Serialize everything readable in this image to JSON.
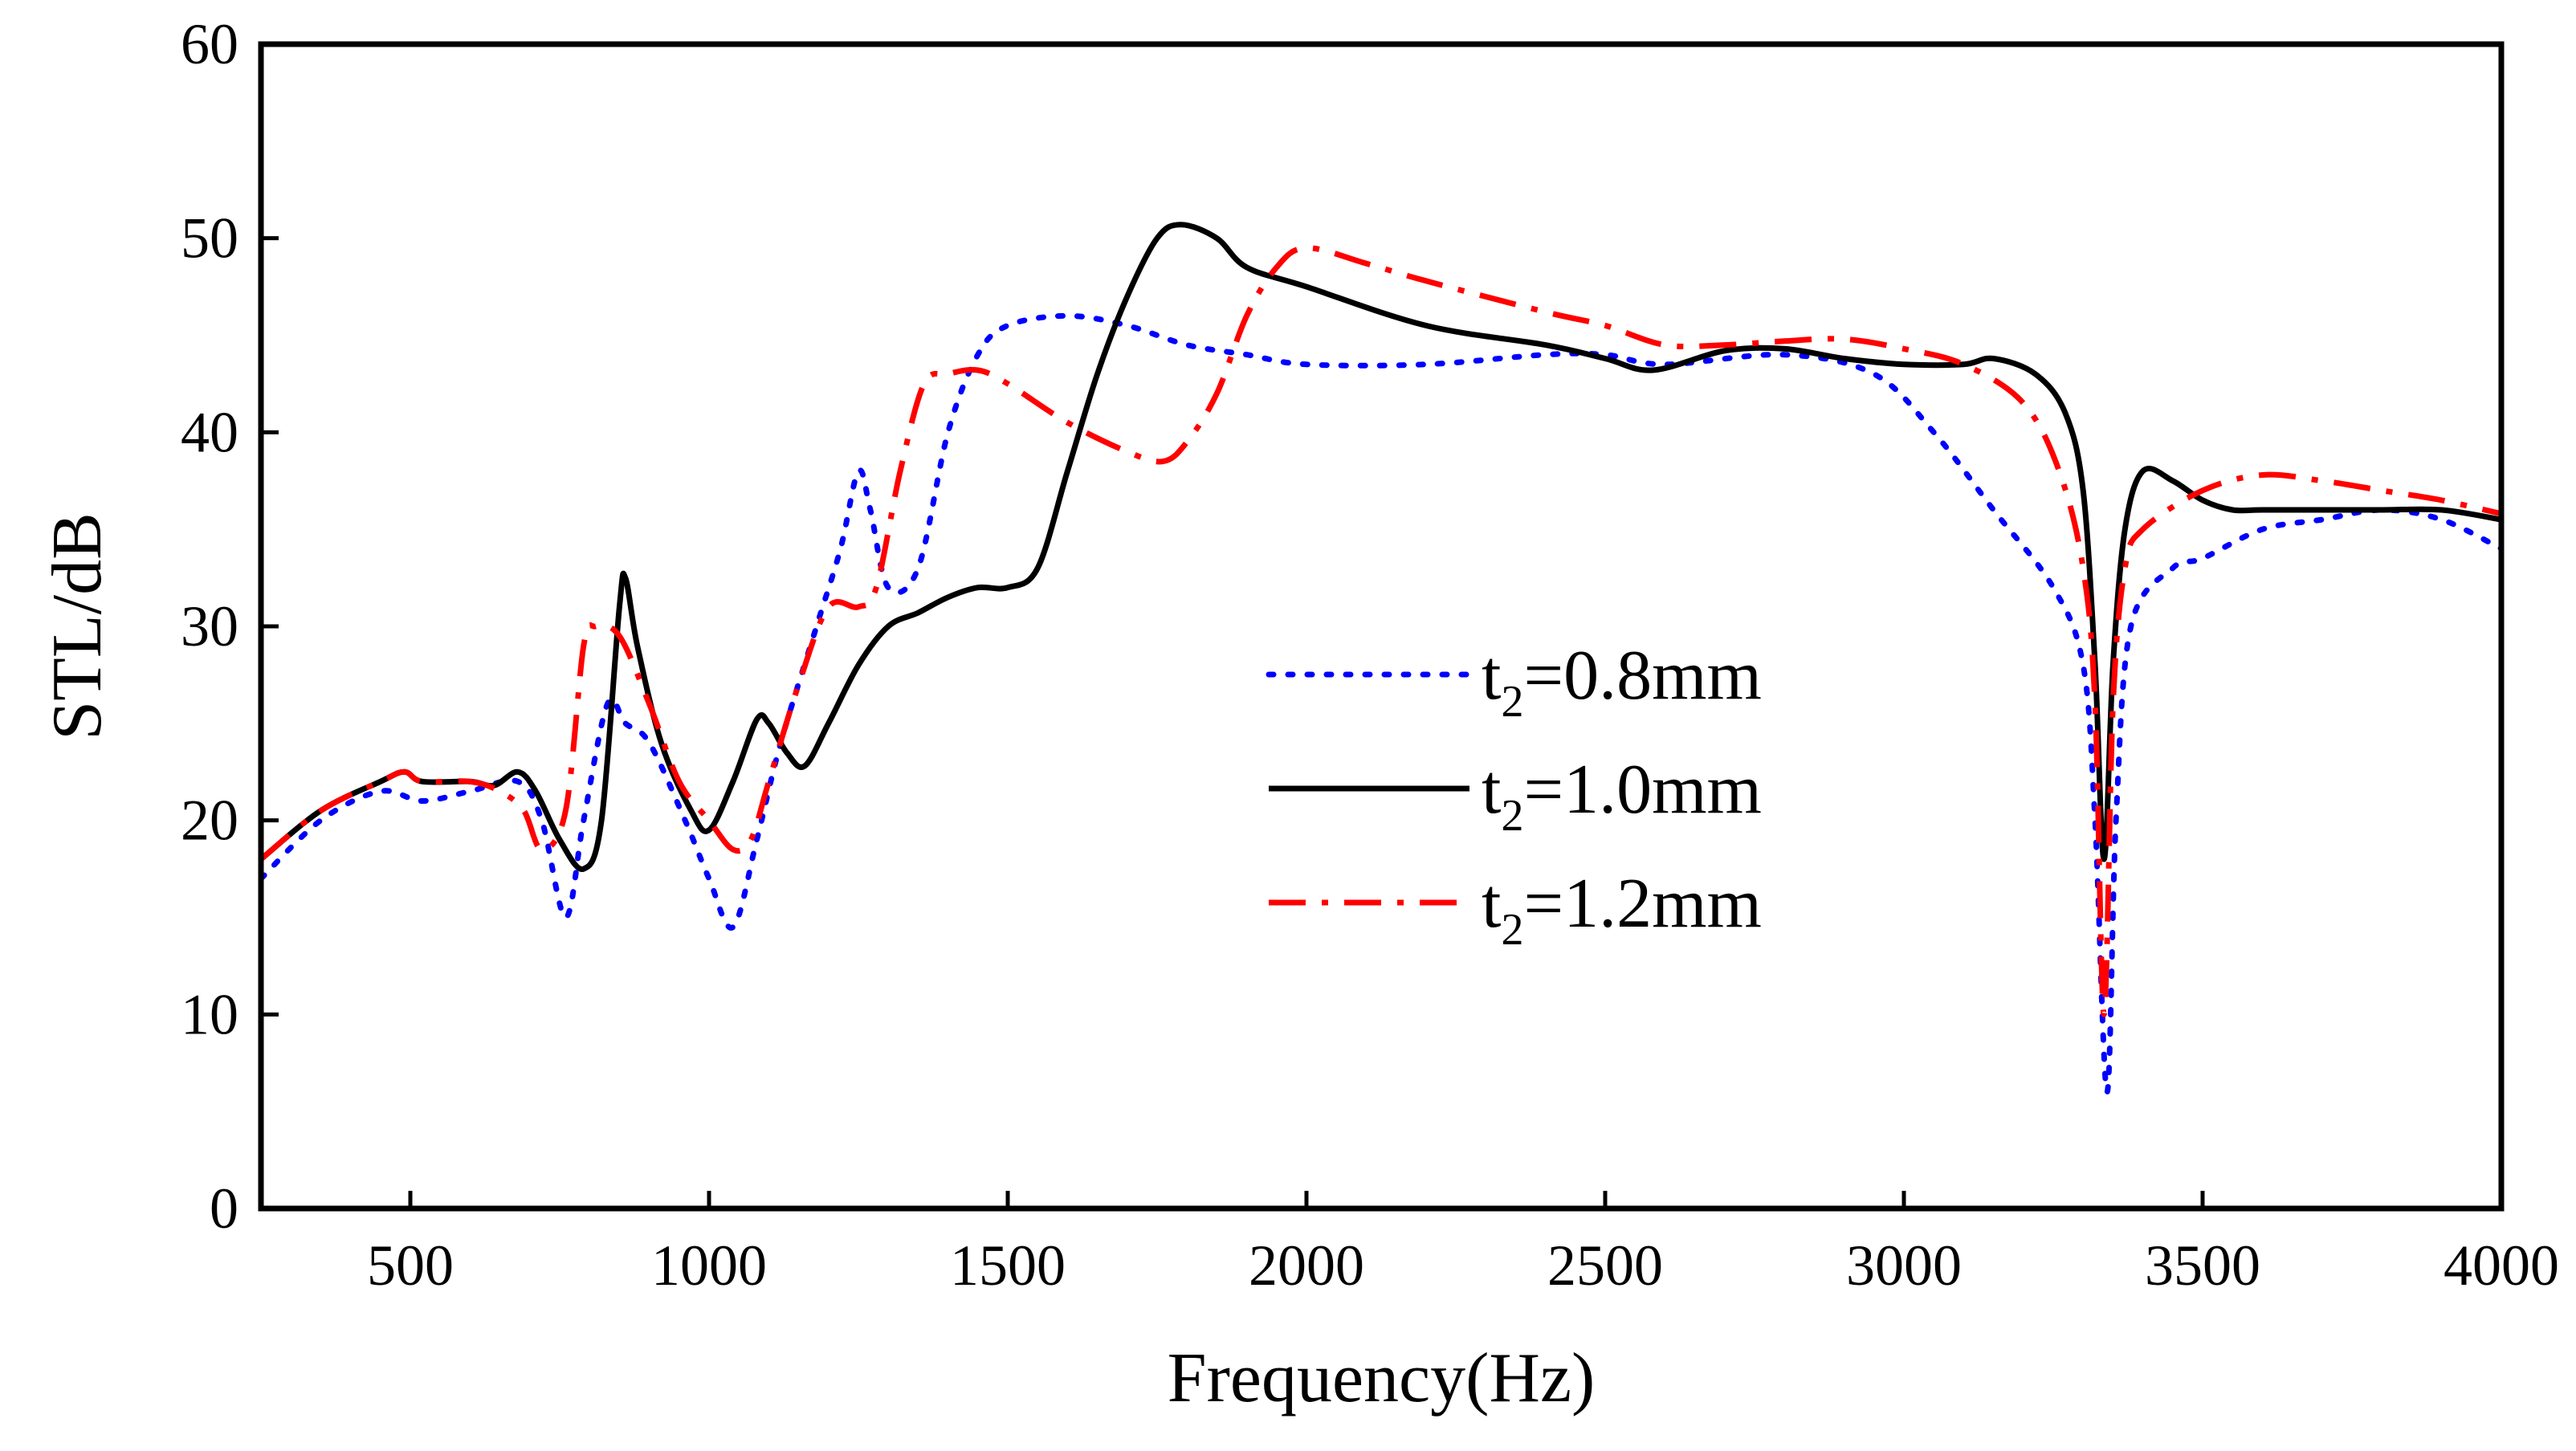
{
  "chart_data": {
    "type": "line",
    "title": "",
    "xlabel": "Frequency(Hz)",
    "ylabel": "STL/dB",
    "xlim": [
      250,
      4000
    ],
    "ylim": [
      0,
      60
    ],
    "xticks": [
      500,
      1000,
      1500,
      2000,
      2500,
      3000,
      3500,
      4000
    ],
    "yticks": [
      0,
      10,
      20,
      30,
      40,
      50,
      60
    ],
    "grid": false,
    "legend_position": "center-right",
    "series": [
      {
        "name": "t2=0.8mm",
        "legend": {
          "base": "t",
          "sub": "2",
          "rest": "=0.8mm"
        },
        "color": "#0000ff",
        "style": "dotted",
        "points": [
          [
            250,
            17
          ],
          [
            350,
            20
          ],
          [
            450,
            21.5
          ],
          [
            520,
            21
          ],
          [
            600,
            21.5
          ],
          [
            680,
            22
          ],
          [
            720,
            20
          ],
          [
            760,
            15
          ],
          [
            790,
            20
          ],
          [
            830,
            26
          ],
          [
            860,
            25
          ],
          [
            900,
            24
          ],
          [
            960,
            20
          ],
          [
            1000,
            17
          ],
          [
            1040,
            14.5
          ],
          [
            1080,
            19
          ],
          [
            1120,
            24
          ],
          [
            1180,
            30
          ],
          [
            1220,
            34
          ],
          [
            1250,
            38
          ],
          [
            1270,
            36
          ],
          [
            1300,
            32
          ],
          [
            1350,
            33
          ],
          [
            1400,
            40
          ],
          [
            1450,
            44
          ],
          [
            1500,
            45.5
          ],
          [
            1600,
            46
          ],
          [
            1700,
            45.5
          ],
          [
            1800,
            44.5
          ],
          [
            1900,
            44
          ],
          [
            2000,
            43.5
          ],
          [
            2200,
            43.5
          ],
          [
            2400,
            44
          ],
          [
            2500,
            44
          ],
          [
            2600,
            43.5
          ],
          [
            2800,
            44
          ],
          [
            2950,
            43
          ],
          [
            3050,
            40
          ],
          [
            3150,
            36
          ],
          [
            3250,
            32
          ],
          [
            3300,
            28
          ],
          [
            3320,
            20
          ],
          [
            3340,
            6
          ],
          [
            3355,
            20
          ],
          [
            3380,
            30
          ],
          [
            3450,
            33
          ],
          [
            3500,
            33.5
          ],
          [
            3600,
            35
          ],
          [
            3700,
            35.5
          ],
          [
            3800,
            36
          ],
          [
            3900,
            35.5
          ],
          [
            4000,
            34
          ]
        ]
      },
      {
        "name": "t2=1.0mm",
        "legend": {
          "base": "t",
          "sub": "2",
          "rest": "=1.0mm"
        },
        "color": "#000000",
        "style": "solid",
        "points": [
          [
            250,
            18
          ],
          [
            350,
            20.5
          ],
          [
            450,
            22
          ],
          [
            490,
            22.5
          ],
          [
            520,
            22
          ],
          [
            600,
            22
          ],
          [
            640,
            21.8
          ],
          [
            680,
            22.5
          ],
          [
            710,
            21.5
          ],
          [
            750,
            19
          ],
          [
            790,
            17.5
          ],
          [
            820,
            20
          ],
          [
            850,
            31
          ],
          [
            860,
            32.5
          ],
          [
            880,
            29
          ],
          [
            920,
            24
          ],
          [
            970,
            20.5
          ],
          [
            1000,
            19.5
          ],
          [
            1040,
            22
          ],
          [
            1080,
            25.2
          ],
          [
            1100,
            25
          ],
          [
            1130,
            23.5
          ],
          [
            1160,
            22.8
          ],
          [
            1200,
            25
          ],
          [
            1250,
            28
          ],
          [
            1300,
            30
          ],
          [
            1350,
            30.7
          ],
          [
            1400,
            31.5
          ],
          [
            1450,
            32
          ],
          [
            1500,
            32
          ],
          [
            1550,
            33
          ],
          [
            1600,
            38
          ],
          [
            1650,
            43
          ],
          [
            1700,
            47
          ],
          [
            1750,
            50
          ],
          [
            1790,
            50.7
          ],
          [
            1850,
            50
          ],
          [
            1900,
            48.5
          ],
          [
            2000,
            47.5
          ],
          [
            2200,
            45.5
          ],
          [
            2400,
            44.5
          ],
          [
            2500,
            43.8
          ],
          [
            2580,
            43.2
          ],
          [
            2700,
            44.2
          ],
          [
            2800,
            44.3
          ],
          [
            2900,
            43.8
          ],
          [
            3000,
            43.5
          ],
          [
            3100,
            43.5
          ],
          [
            3150,
            43.8
          ],
          [
            3220,
            43
          ],
          [
            3270,
            41
          ],
          [
            3300,
            37
          ],
          [
            3320,
            28
          ],
          [
            3335,
            18
          ],
          [
            3350,
            28
          ],
          [
            3370,
            35
          ],
          [
            3400,
            38
          ],
          [
            3450,
            37.5
          ],
          [
            3500,
            36.5
          ],
          [
            3550,
            36
          ],
          [
            3600,
            36
          ],
          [
            3700,
            36
          ],
          [
            3800,
            36
          ],
          [
            3900,
            36
          ],
          [
            4000,
            35.5
          ]
        ]
      },
      {
        "name": "t2=1.2mm",
        "legend": {
          "base": "t",
          "sub": "2",
          "rest": "=1.2mm"
        },
        "color": "#ff0000",
        "style": "dashdot",
        "points": [
          [
            250,
            18
          ],
          [
            350,
            20.5
          ],
          [
            450,
            22
          ],
          [
            490,
            22.5
          ],
          [
            520,
            22
          ],
          [
            600,
            22
          ],
          [
            650,
            21.5
          ],
          [
            690,
            20.5
          ],
          [
            720,
            18.5
          ],
          [
            760,
            20.5
          ],
          [
            790,
            29
          ],
          [
            810,
            30
          ],
          [
            850,
            29.5
          ],
          [
            900,
            26
          ],
          [
            950,
            22
          ],
          [
            1000,
            20
          ],
          [
            1040,
            18.5
          ],
          [
            1070,
            19
          ],
          [
            1100,
            22
          ],
          [
            1150,
            27
          ],
          [
            1200,
            31
          ],
          [
            1250,
            31
          ],
          [
            1280,
            32
          ],
          [
            1320,
            38
          ],
          [
            1360,
            42.5
          ],
          [
            1400,
            43
          ],
          [
            1450,
            43.2
          ],
          [
            1500,
            42.5
          ],
          [
            1600,
            40.5
          ],
          [
            1700,
            39
          ],
          [
            1760,
            38.5
          ],
          [
            1800,
            39.5
          ],
          [
            1850,
            42
          ],
          [
            1900,
            46
          ],
          [
            1950,
            48.5
          ],
          [
            2000,
            49.5
          ],
          [
            2100,
            48.7
          ],
          [
            2200,
            47.8
          ],
          [
            2400,
            46.2
          ],
          [
            2500,
            45.5
          ],
          [
            2600,
            44.5
          ],
          [
            2700,
            44.5
          ],
          [
            2800,
            44.7
          ],
          [
            2900,
            44.8
          ],
          [
            3000,
            44.3
          ],
          [
            3100,
            43.5
          ],
          [
            3200,
            41.5
          ],
          [
            3260,
            38
          ],
          [
            3300,
            33
          ],
          [
            3320,
            26
          ],
          [
            3335,
            10
          ],
          [
            3350,
            26
          ],
          [
            3370,
            33
          ],
          [
            3400,
            35
          ],
          [
            3500,
            37
          ],
          [
            3600,
            37.8
          ],
          [
            3700,
            37.5
          ],
          [
            3800,
            37
          ],
          [
            3900,
            36.5
          ],
          [
            4000,
            35.8
          ]
        ]
      }
    ]
  }
}
